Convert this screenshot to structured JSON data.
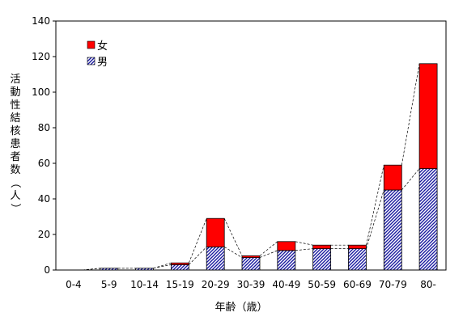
{
  "chart_data": {
    "type": "bar",
    "stacked": true,
    "categories": [
      "0-4",
      "5-9",
      "10-14",
      "15-19",
      "20-29",
      "30-39",
      "40-49",
      "50-59",
      "60-69",
      "70-79",
      "80-"
    ],
    "series": [
      {
        "name": "男",
        "values": [
          0,
          1,
          1,
          3,
          13,
          7,
          11,
          12,
          12,
          45,
          57
        ],
        "color": "#1a1aa0",
        "pattern": "diagonal-hatch"
      },
      {
        "name": "女",
        "values": [
          0,
          0,
          0,
          1,
          16,
          1,
          5,
          2,
          2,
          14,
          59
        ],
        "color": "#ff0000",
        "pattern": "solid"
      }
    ],
    "ylabel": "活動性結核患者数（人）",
    "xlabel": "年齢（歳）",
    "ylim": [
      0,
      140
    ],
    "yticks": [
      0,
      20,
      40,
      60,
      80,
      100,
      120,
      140
    ],
    "grid": false,
    "legend_position": "top-left",
    "series_lines": true
  }
}
